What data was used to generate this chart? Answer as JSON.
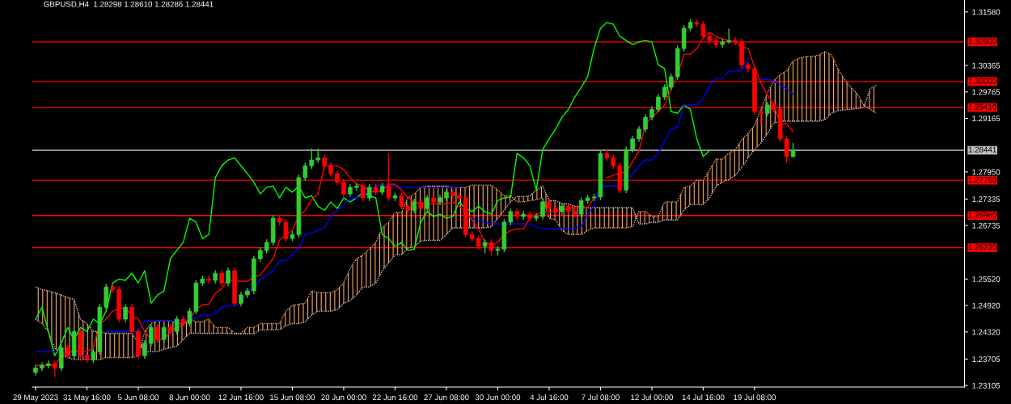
{
  "chart_data": {
    "type": "candlestick",
    "title": "GBPUSD,H4  1.28298 1.28610 1.28286 1.28441",
    "categories": [
      "29 May 2023",
      null,
      null,
      null,
      null,
      null,
      null,
      null,
      "31 May 16:00",
      null,
      null,
      null,
      null,
      null,
      null,
      null,
      "5 Jun 08:00",
      null,
      null,
      null,
      null,
      null,
      null,
      null,
      "8 Jun 00:00",
      null,
      null,
      null,
      null,
      null,
      null,
      null,
      "12 Jun 16:00",
      null,
      null,
      null,
      null,
      null,
      null,
      null,
      "15 Jun 08:00",
      null,
      null,
      null,
      null,
      null,
      null,
      null,
      "20 Jun 00:00",
      null,
      null,
      null,
      null,
      null,
      null,
      null,
      "22 Jun 16:00",
      null,
      null,
      null,
      null,
      null,
      null,
      null,
      "27 Jun 08:00",
      null,
      null,
      null,
      null,
      null,
      null,
      null,
      "30 Jun 00:00",
      null,
      null,
      null,
      null,
      null,
      null,
      null,
      "4 Jul 16:00",
      null,
      null,
      null,
      null,
      null,
      null,
      null,
      "7 Jul 08:00",
      null,
      null,
      null,
      null,
      null,
      null,
      null,
      "12 Jul 00:00",
      null,
      null,
      null,
      null,
      null,
      null,
      null,
      "14 Jul 16:00",
      null,
      null,
      null,
      null,
      null,
      null,
      null,
      "19 Jul 08:00",
      null,
      null,
      null,
      null,
      null,
      null,
      null,
      null,
      null,
      null,
      null,
      null,
      null,
      null,
      null,
      null,
      null,
      null,
      null
    ],
    "ohlc": [
      [
        1.234,
        1.2357,
        1.2333,
        1.235
      ],
      [
        1.235,
        1.2363,
        1.2343,
        1.2356
      ],
      [
        1.2356,
        1.2367,
        1.2349,
        1.236
      ],
      [
        1.236,
        1.2367,
        1.233,
        1.235
      ],
      [
        1.235,
        1.2403,
        1.2343,
        1.2396
      ],
      [
        1.2396,
        1.2403,
        1.2371,
        1.2378
      ],
      [
        1.2378,
        1.244,
        1.2371,
        1.2433
      ],
      [
        1.2433,
        1.244,
        1.2371,
        1.2378
      ],
      [
        1.2378,
        1.2385,
        1.2362,
        1.2369
      ],
      [
        1.2369,
        1.2394,
        1.2362,
        1.2387
      ],
      [
        1.2387,
        1.2495,
        1.238,
        1.2488
      ],
      [
        1.2488,
        1.2541,
        1.2481,
        1.2534
      ],
      [
        1.2534,
        1.2541,
        1.2521,
        1.2528
      ],
      [
        1.2528,
        1.2535,
        1.2454,
        1.2461
      ],
      [
        1.2461,
        1.2495,
        1.2454,
        1.2488
      ],
      [
        1.2488,
        1.2495,
        1.2426,
        1.2433
      ],
      [
        1.2433,
        1.244,
        1.2371,
        1.2378
      ],
      [
        1.2378,
        1.2413,
        1.2371,
        1.2406
      ],
      [
        1.2406,
        1.2449,
        1.2399,
        1.2442
      ],
      [
        1.2442,
        1.2449,
        1.2408,
        1.2415
      ],
      [
        1.2415,
        1.2449,
        1.2408,
        1.2442
      ],
      [
        1.2442,
        1.2449,
        1.2426,
        1.2433
      ],
      [
        1.2433,
        1.2468,
        1.2426,
        1.2461
      ],
      [
        1.2461,
        1.2468,
        1.2444,
        1.2451
      ],
      [
        1.2451,
        1.2486,
        1.2444,
        1.2479
      ],
      [
        1.2479,
        1.255,
        1.2472,
        1.2543
      ],
      [
        1.2543,
        1.2559,
        1.2536,
        1.2552
      ],
      [
        1.2552,
        1.2559,
        1.2542,
        1.2549
      ],
      [
        1.2549,
        1.2572,
        1.2542,
        1.2565
      ],
      [
        1.2565,
        1.2572,
        1.2536,
        1.2543
      ],
      [
        1.2543,
        1.2578,
        1.2536,
        1.2571
      ],
      [
        1.2571,
        1.2578,
        1.249,
        1.2497
      ],
      [
        1.2497,
        1.2523,
        1.249,
        1.2516
      ],
      [
        1.2516,
        1.2532,
        1.2509,
        1.2525
      ],
      [
        1.2525,
        1.2605,
        1.2518,
        1.2598
      ],
      [
        1.2598,
        1.2624,
        1.2591,
        1.2617
      ],
      [
        1.2617,
        1.2642,
        1.261,
        1.2635
      ],
      [
        1.2635,
        1.2697,
        1.2628,
        1.269
      ],
      [
        1.269,
        1.2697,
        1.2674,
        1.2681
      ],
      [
        1.2681,
        1.2688,
        1.2637,
        1.2644
      ],
      [
        1.2644,
        1.266,
        1.2637,
        1.2653
      ],
      [
        1.2653,
        1.2789,
        1.2646,
        1.2782
      ],
      [
        1.2782,
        1.2816,
        1.2775,
        1.2809
      ],
      [
        1.2809,
        1.2848,
        1.2802,
        1.2822
      ],
      [
        1.2822,
        1.2848,
        1.2815,
        1.2827
      ],
      [
        1.2827,
        1.2834,
        1.2802,
        1.2809
      ],
      [
        1.2809,
        1.2816,
        1.2784,
        1.2791
      ],
      [
        1.2791,
        1.2798,
        1.2765,
        1.2772
      ],
      [
        1.2772,
        1.2779,
        1.2738,
        1.2745
      ],
      [
        1.2745,
        1.2767,
        1.2738,
        1.276
      ],
      [
        1.276,
        1.277,
        1.2753,
        1.2763
      ],
      [
        1.2763,
        1.277,
        1.2729,
        1.2736
      ],
      [
        1.2736,
        1.2767,
        1.2729,
        1.276
      ],
      [
        1.276,
        1.2767,
        1.2742,
        1.2749
      ],
      [
        1.2749,
        1.277,
        1.2742,
        1.2763
      ],
      [
        1.2763,
        1.2837,
        1.2729,
        1.2736
      ],
      [
        1.2736,
        1.2748,
        1.2729,
        1.2741
      ],
      [
        1.2741,
        1.2748,
        1.271,
        1.2717
      ],
      [
        1.2717,
        1.2724,
        1.2701,
        1.2708
      ],
      [
        1.2708,
        1.2734,
        1.2701,
        1.2727
      ],
      [
        1.2727,
        1.2734,
        1.2705,
        1.2712
      ],
      [
        1.2712,
        1.2743,
        1.2705,
        1.2736
      ],
      [
        1.2736,
        1.2743,
        1.272,
        1.2727
      ],
      [
        1.2727,
        1.2743,
        1.272,
        1.2736
      ],
      [
        1.2736,
        1.2756,
        1.2729,
        1.2749
      ],
      [
        1.2749,
        1.2756,
        1.2734,
        1.2741
      ],
      [
        1.2741,
        1.2748,
        1.2729,
        1.2736
      ],
      [
        1.2736,
        1.2743,
        1.2646,
        1.2653
      ],
      [
        1.2653,
        1.266,
        1.2637,
        1.2644
      ],
      [
        1.2644,
        1.2651,
        1.2619,
        1.2626
      ],
      [
        1.2626,
        1.2642,
        1.261,
        1.2635
      ],
      [
        1.2635,
        1.2642,
        1.2605,
        1.2617
      ],
      [
        1.2617,
        1.2627,
        1.2605,
        1.262
      ],
      [
        1.262,
        1.2688,
        1.2613,
        1.2681
      ],
      [
        1.2681,
        1.2712,
        1.2674,
        1.2705
      ],
      [
        1.2705,
        1.2712,
        1.2687,
        1.2694
      ],
      [
        1.2694,
        1.2706,
        1.2687,
        1.2699
      ],
      [
        1.2699,
        1.2706,
        1.2683,
        1.269
      ],
      [
        1.269,
        1.2701,
        1.2683,
        1.2694
      ],
      [
        1.2694,
        1.2734,
        1.2687,
        1.2727
      ],
      [
        1.2727,
        1.2734,
        1.2705,
        1.2712
      ],
      [
        1.2712,
        1.2719,
        1.2698,
        1.2705
      ],
      [
        1.2705,
        1.2724,
        1.2698,
        1.2717
      ],
      [
        1.2717,
        1.2724,
        1.2698,
        1.2705
      ],
      [
        1.2705,
        1.2712,
        1.2692,
        1.2699
      ],
      [
        1.2699,
        1.2737,
        1.2692,
        1.273
      ],
      [
        1.273,
        1.2743,
        1.2723,
        1.2736
      ],
      [
        1.2736,
        1.2745,
        1.2729,
        1.2738
      ],
      [
        1.2738,
        1.2844,
        1.2731,
        1.2837
      ],
      [
        1.2837,
        1.2844,
        1.282,
        1.2827
      ],
      [
        1.2827,
        1.2834,
        1.2802,
        1.2809
      ],
      [
        1.2809,
        1.2816,
        1.2747,
        1.2754
      ],
      [
        1.2754,
        1.2853,
        1.2747,
        1.2846
      ],
      [
        1.2846,
        1.2877,
        1.2839,
        1.287
      ],
      [
        1.287,
        1.2899,
        1.2863,
        1.2892
      ],
      [
        1.2892,
        1.2926,
        1.2885,
        1.2919
      ],
      [
        1.2919,
        1.2944,
        1.2912,
        1.2937
      ],
      [
        1.2937,
        1.2972,
        1.293,
        1.2965
      ],
      [
        1.2965,
        1.2994,
        1.2958,
        1.2987
      ],
      [
        1.2987,
        1.3018,
        1.298,
        1.3011
      ],
      [
        1.3011,
        1.3082,
        1.3004,
        1.3075
      ],
      [
        1.3075,
        1.3128,
        1.3068,
        1.3121
      ],
      [
        1.3121,
        1.3141,
        1.3114,
        1.3134
      ],
      [
        1.3134,
        1.3141,
        1.3123,
        1.313
      ],
      [
        1.313,
        1.3137,
        1.3096,
        1.3103
      ],
      [
        1.3103,
        1.311,
        1.3086,
        1.3093
      ],
      [
        1.3093,
        1.31,
        1.3077,
        1.3084
      ],
      [
        1.3084,
        1.3097,
        1.3077,
        1.309
      ],
      [
        1.309,
        1.312,
        1.3086,
        1.3093
      ],
      [
        1.3093,
        1.31,
        1.3083,
        1.309
      ],
      [
        1.309,
        1.3097,
        1.3031,
        1.3038
      ],
      [
        1.3038,
        1.3045,
        1.3022,
        1.3029
      ],
      [
        1.3029,
        1.3036,
        1.2925,
        1.2932
      ],
      [
        1.2932,
        1.2939,
        1.29,
        1.2928
      ],
      [
        1.2928,
        1.2954,
        1.2921,
        1.2947
      ],
      [
        1.2947,
        1.2954,
        1.293,
        1.2937
      ],
      [
        1.2937,
        1.2944,
        1.2863,
        1.287
      ],
      [
        1.287,
        1.2877,
        1.2815,
        1.28298
      ],
      [
        1.28298,
        1.2861,
        1.28286,
        1.28441
      ],
      null,
      null,
      null,
      null,
      null,
      null,
      null,
      null,
      null,
      null,
      null,
      null,
      null
    ],
    "colors": [
      "#32cd32",
      "#32cd32",
      "#32cd32",
      "#ff0000",
      "#32cd32",
      "#ff0000",
      "#32cd32",
      "#ff0000",
      "#ff0000",
      "#32cd32",
      "#32cd32",
      "#32cd32",
      "#ff0000",
      "#ff0000",
      "#32cd32",
      "#ff0000",
      "#ff0000",
      "#32cd32",
      "#32cd32",
      "#ff0000",
      "#32cd32",
      "#ff0000",
      "#32cd32",
      "#ff0000",
      "#32cd32",
      "#32cd32",
      "#32cd32",
      "#ff0000",
      "#32cd32",
      "#ff0000",
      "#32cd32",
      "#ff0000",
      "#32cd32",
      "#32cd32",
      "#32cd32",
      "#32cd32",
      "#32cd32",
      "#32cd32",
      "#ff0000",
      "#ff0000",
      "#32cd32",
      "#32cd32",
      "#32cd32",
      "#32cd32",
      "#32cd32",
      "#ff0000",
      "#ff0000",
      "#ff0000",
      "#ff0000",
      "#32cd32",
      "#32cd32",
      "#ff0000",
      "#32cd32",
      "#ff0000",
      "#32cd32",
      "#ff0000",
      "#32cd32",
      "#ff0000",
      "#ff0000",
      "#32cd32",
      "#ff0000",
      "#32cd32",
      "#ff0000",
      "#32cd32",
      "#32cd32",
      "#ff0000",
      "#ff0000",
      "#ff0000",
      "#ff0000",
      "#ff0000",
      "#32cd32",
      "#ff0000",
      "#32cd32",
      "#32cd32",
      "#32cd32",
      "#ff0000",
      "#32cd32",
      "#ff0000",
      "#32cd32",
      "#32cd32",
      "#ff0000",
      "#ff0000",
      "#32cd32",
      "#ff0000",
      "#ff0000",
      "#32cd32",
      "#32cd32",
      "#32cd32",
      "#32cd32",
      "#ff0000",
      "#ff0000",
      "#ff0000",
      "#32cd32",
      "#32cd32",
      "#32cd32",
      "#32cd32",
      "#32cd32",
      "#32cd32",
      "#32cd32",
      "#32cd32",
      "#32cd32",
      "#32cd32",
      "#32cd32",
      "#ff0000",
      "#ff0000",
      "#ff0000",
      "#ff0000",
      "#32cd32",
      "#32cd32",
      "#ff0000",
      "#ff0000",
      "#ff0000",
      "#ff0000",
      "#ff0000",
      "#32cd32",
      "#ff0000",
      "#ff0000",
      "#ff0000",
      "#32cd32",
      null,
      null,
      null,
      null,
      null,
      null,
      null,
      null,
      null,
      null,
      null,
      null,
      null
    ],
    "series": [
      {
        "type": "line",
        "color": "#f4a460",
        "line_style": "dotted",
        "values": [
          1.2461,
          1.2451,
          1.2433,
          1.2396,
          1.2378,
          1.2374,
          1.2369,
          1.2369,
          1.2369,
          1.2369,
          1.2369,
          1.2374,
          1.2374,
          1.2374,
          1.2374,
          1.2374,
          1.2378,
          1.2433,
          1.2451,
          1.2457,
          1.2457,
          1.2457,
          1.2451,
          1.2451,
          1.2461,
          1.2455,
          1.2455,
          1.2461,
          1.2442,
          1.2442,
          1.2442,
          1.2429,
          1.2429,
          1.2442,
          1.2442,
          1.2451,
          1.2451,
          1.2451,
          1.2451,
          1.2479,
          1.2492,
          1.2495,
          1.2497,
          1.2525,
          1.2521,
          1.2521,
          1.2521,
          1.2528,
          1.2543,
          1.2576,
          1.2598,
          1.2607,
          1.262,
          1.2635,
          1.2668,
          1.2681,
          1.2703,
          1.2703,
          1.2736,
          1.2745,
          1.276,
          1.2763,
          1.2763,
          1.2763,
          1.2763,
          1.276,
          1.276,
          1.276,
          1.2765,
          1.2765,
          1.2765,
          1.2765,
          1.2754,
          1.2741,
          1.2741,
          1.2727,
          1.2727,
          1.273,
          1.2732,
          1.2736,
          1.269,
          1.2686,
          1.2662,
          1.2653,
          1.2653,
          1.2653,
          1.2662,
          1.2668,
          1.2668,
          1.2668,
          1.2668,
          1.2668,
          1.2668,
          1.2671,
          1.2705,
          1.2705,
          1.2694,
          1.2694,
          1.2727,
          1.2727,
          1.2727,
          1.276,
          1.2763,
          1.2776,
          1.2776,
          1.28,
          1.2824,
          1.2824,
          1.2837,
          1.2846,
          1.2868,
          1.2882,
          1.2901,
          1.2937,
          1.2974,
          1.3002,
          1.3016,
          1.3024,
          1.3047,
          1.3053,
          1.3057,
          1.3057,
          1.306,
          1.3068,
          1.306,
          1.3029,
          1.3005,
          1.2987,
          1.2972,
          1.2947,
          1.2937,
          1.2928
        ],
        "lower": [
          1.2534,
          1.2528,
          1.2525,
          1.2521,
          1.2516,
          1.251,
          1.2506,
          1.2461,
          1.2451,
          1.2433,
          1.2433,
          1.2429,
          1.2429,
          1.2429,
          1.2429,
          1.2429,
          1.2406,
          1.2387,
          1.2387,
          1.2387,
          1.2393,
          1.2396,
          1.24,
          1.2415,
          1.2429,
          1.2429,
          1.2429,
          1.2429,
          1.2429,
          1.2429,
          1.2429,
          1.2428,
          1.2428,
          1.2428,
          1.2428,
          1.2437,
          1.2437,
          1.2437,
          1.2437,
          1.2446,
          1.2451,
          1.2451,
          1.2455,
          1.247,
          1.2479,
          1.2479,
          1.2479,
          1.2483,
          1.2497,
          1.2503,
          1.2516,
          1.2534,
          1.2534,
          1.2543,
          1.2571,
          1.2589,
          1.2607,
          1.2607,
          1.2622,
          1.2626,
          1.2638,
          1.264,
          1.264,
          1.264,
          1.2653,
          1.2668,
          1.2668,
          1.2668,
          1.2668,
          1.2668,
          1.2668,
          1.2671,
          1.269,
          1.2708,
          1.2727,
          1.2739,
          1.2739,
          1.2741,
          1.2754,
          1.2763,
          1.273,
          1.273,
          1.2723,
          1.2723,
          1.2717,
          1.2717,
          1.2714,
          1.2714,
          1.2714,
          1.2714,
          1.2714,
          1.2714,
          1.2714,
          1.2714,
          1.2677,
          1.2677,
          1.2681,
          1.2681,
          1.2686,
          1.2686,
          1.2686,
          1.2708,
          1.2721,
          1.2721,
          1.2721,
          1.2736,
          1.2763,
          1.2772,
          1.2778,
          1.2787,
          1.2805,
          1.2827,
          1.2846,
          1.2861,
          1.2882,
          1.2906,
          1.291,
          1.291,
          1.291,
          1.291,
          1.291,
          1.291,
          1.291,
          1.2914,
          1.2928,
          1.2934,
          1.2936,
          1.2937,
          1.2939,
          1.2941,
          1.2983,
          1.2992
        ],
        "upper": [
          1.2461,
          1.2451,
          1.2433,
          1.2396,
          1.2378,
          1.2374,
          1.2369,
          1.2369,
          1.2369,
          1.2369,
          1.2369,
          1.2374,
          1.2374,
          1.2374,
          1.2374,
          1.2374,
          1.2378,
          1.2433,
          1.2451,
          1.2457,
          1.2457,
          1.2457,
          1.2451,
          1.2451,
          1.2461,
          1.2455,
          1.2455,
          1.2461,
          1.2442,
          1.2442,
          1.2442,
          1.2429,
          1.2429,
          1.2442,
          1.2442,
          1.2451,
          1.2451,
          1.2451,
          1.2451,
          1.2479,
          1.2492,
          1.2495,
          1.2497,
          1.2525,
          1.2521,
          1.2521,
          1.2521,
          1.2528,
          1.2543,
          1.2576,
          1.2598,
          1.2607,
          1.262,
          1.2635,
          1.2668,
          1.2681,
          1.2703,
          1.2703,
          1.2736,
          1.2745,
          1.276,
          1.2763,
          1.2763,
          1.2763,
          1.2763,
          1.276,
          1.276,
          1.276,
          1.2765,
          1.2765,
          1.2765,
          1.2765,
          1.2754,
          1.2741,
          1.2741,
          1.2727,
          1.2727,
          1.273,
          1.2732,
          1.2736,
          1.269,
          1.2686,
          1.2662,
          1.2653,
          1.2653,
          1.2653,
          1.2662,
          1.2668,
          1.2668,
          1.2668,
          1.2668,
          1.2668,
          1.2668,
          1.2671,
          1.2705,
          1.2705,
          1.2694,
          1.2694,
          1.2727,
          1.2727,
          1.2727,
          1.276,
          1.2763,
          1.2776,
          1.2776,
          1.28,
          1.2824,
          1.2824,
          1.2837,
          1.2846,
          1.2868,
          1.2882,
          1.2901,
          1.2937,
          1.2974,
          1.3002,
          1.3016,
          1.3024,
          1.3047,
          1.3053,
          1.3057,
          1.3057,
          1.306,
          1.3068,
          1.306,
          1.3029,
          1.3005,
          1.2987,
          1.2972,
          1.2947,
          1.2937,
          1.2928
        ]
      },
      {
        "type": "line",
        "color": "#d8bfd8",
        "line_style": "dotted",
        "values": [
          1.2534,
          1.2528,
          1.2525,
          1.2521,
          1.2516,
          1.251,
          1.2506,
          1.2461,
          1.2451,
          1.2433,
          1.2433,
          1.2429,
          1.2429,
          1.2429,
          1.2429,
          1.2429,
          1.2406,
          1.2387,
          1.2387,
          1.2387,
          1.2393,
          1.2396,
          1.24,
          1.2415,
          1.2429,
          1.2429,
          1.2429,
          1.2429,
          1.2429,
          1.2429,
          1.2429,
          1.2428,
          1.2428,
          1.2428,
          1.2428,
          1.2437,
          1.2437,
          1.2437,
          1.2437,
          1.2446,
          1.2451,
          1.2451,
          1.2455,
          1.247,
          1.2479,
          1.2479,
          1.2479,
          1.2483,
          1.2497,
          1.2503,
          1.2516,
          1.2534,
          1.2534,
          1.2543,
          1.2571,
          1.2589,
          1.2607,
          1.2607,
          1.2622,
          1.2626,
          1.2638,
          1.264,
          1.264,
          1.264,
          1.2653,
          1.2668,
          1.2668,
          1.2668,
          1.2668,
          1.2668,
          1.2668,
          1.2671,
          1.269,
          1.2708,
          1.2727,
          1.2739,
          1.2739,
          1.2741,
          1.2754,
          1.2763,
          1.273,
          1.273,
          1.2723,
          1.2723,
          1.2717,
          1.2717,
          1.2714,
          1.2714,
          1.2714,
          1.2714,
          1.2714,
          1.2714,
          1.2714,
          1.2714,
          1.2677,
          1.2677,
          1.2681,
          1.2681,
          1.2686,
          1.2686,
          1.2686,
          1.2708,
          1.2721,
          1.2721,
          1.2721,
          1.2736,
          1.2763,
          1.2772,
          1.2778,
          1.2787,
          1.2805,
          1.2827,
          1.2846,
          1.2861,
          1.2882,
          1.2906,
          1.291,
          1.291,
          1.291,
          1.291,
          1.291,
          1.291,
          1.291,
          1.2914,
          1.2928,
          1.2934,
          1.2936,
          1.2937,
          1.2939,
          1.2941,
          1.2983,
          1.2992
        ]
      },
      {
        "type": "line",
        "color": "#00ff00",
        "line_style": "solid",
        "values": [
          1.2461,
          1.2488,
          1.2433,
          1.2378,
          1.2406,
          1.2442,
          1.2415,
          1.2442,
          1.2433,
          1.2461,
          1.2451,
          1.2479,
          1.2543,
          1.2552,
          1.2549,
          1.2565,
          1.2543,
          1.2571,
          1.2497,
          1.2516,
          1.2525,
          1.2598,
          1.2617,
          1.2635,
          1.269,
          1.2681,
          1.2644,
          1.2653,
          1.2782,
          1.2809,
          1.2822,
          1.2827,
          1.2809,
          1.2791,
          1.2772,
          1.2745,
          1.276,
          1.2763,
          1.2736,
          1.276,
          1.2749,
          1.2763,
          1.2736,
          1.2741,
          1.2717,
          1.2708,
          1.2727,
          1.2712,
          1.2736,
          1.2727,
          1.2736,
          1.2749,
          1.2741,
          1.2736,
          1.2653,
          1.2644,
          1.2626,
          1.2635,
          1.2617,
          1.262,
          1.2681,
          1.2705,
          1.2694,
          1.2699,
          1.269,
          1.2694,
          1.2727,
          1.2712,
          1.2705,
          1.2717,
          1.2705,
          1.2699,
          1.273,
          1.2736,
          1.2738,
          1.2837,
          1.2827,
          1.2809,
          1.2754,
          1.2846,
          1.287,
          1.2892,
          1.2919,
          1.2937,
          1.2965,
          1.2987,
          1.3011,
          1.3075,
          1.3121,
          1.3134,
          1.313,
          1.3103,
          1.3093,
          1.3084,
          1.309,
          1.3093,
          1.309,
          1.3038,
          1.3029,
          1.2932,
          1.2928,
          1.2947,
          1.2937,
          1.287,
          1.283,
          1.2844,
          null,
          null,
          null,
          null,
          null,
          null,
          null,
          null,
          null,
          null,
          null,
          null,
          null,
          null,
          null,
          null,
          null,
          null,
          null,
          null,
          null,
          null,
          null,
          null,
          null,
          null
        ]
      },
      {
        "type": "line",
        "color": "#0000ff",
        "line_style": "solid",
        "values": [
          1.2387,
          1.2387,
          1.2387,
          1.2387,
          1.2387,
          1.2378,
          1.2378,
          1.2378,
          1.2378,
          1.2378,
          null,
          1.2433,
          1.2433,
          1.2433,
          1.2433,
          1.2433,
          1.2433,
          1.2457,
          1.2457,
          1.2457,
          1.2457,
          1.2457,
          1.2457,
          1.2457,
          1.2461,
          1.2464,
          1.247,
          1.247,
          1.2473,
          1.2488,
          1.2492,
          1.2492,
          1.2497,
          1.2528,
          1.2528,
          1.2552,
          1.2561,
          1.2571,
          1.2594,
          1.2594,
          1.2607,
          1.2622,
          1.2653,
          1.2657,
          1.2662,
          1.2668,
          1.2694,
          1.2708,
          1.2721,
          1.2736,
          1.2736,
          1.2741,
          1.2754,
          1.2763,
          1.2767,
          1.2767,
          1.2763,
          1.276,
          1.276,
          1.276,
          1.276,
          1.276,
          1.276,
          1.276,
          1.276,
          1.276,
          1.276,
          null,
          1.269,
          1.2684,
          1.2681,
          1.2677,
          1.2677,
          1.2677,
          1.2677,
          1.2677,
          1.2677,
          1.2677,
          1.2671,
          1.2666,
          1.2666,
          1.2666,
          1.2666,
          1.2666,
          1.2668,
          1.267,
          1.2699,
          1.2717,
          1.2763,
          1.2763,
          1.2763,
          1.2763,
          1.2767,
          1.2791,
          1.2809,
          1.2822,
          1.2822,
          1.2838,
          1.2864,
          1.2892,
          1.2897,
          1.2947,
          1.2947,
          1.2947,
          1.2961,
          1.2992,
          1.3007,
          1.3007,
          1.3024,
          1.3024,
          1.3024,
          1.3053,
          null,
          1.3005,
          1.3005,
          1.3002,
          1.2992,
          1.2983,
          1.2972,
          null,
          null,
          null,
          null,
          null,
          null,
          null,
          null,
          null,
          null,
          null,
          null,
          null
        ]
      },
      {
        "type": "line",
        "color": "#ff0000",
        "line_style": "solid",
        "values": [
          1.2356,
          1.2356,
          1.2356,
          1.2356,
          1.2378,
          1.2387,
          1.2387,
          1.2387,
          1.2387,
          1.2396,
          1.2451,
          1.2461,
          1.2479,
          1.2485,
          1.2485,
          1.247,
          1.2461,
          1.2433,
          1.2415,
          1.2415,
          1.2415,
          1.2433,
          1.2442,
          1.2448,
          1.2461,
          1.2483,
          1.2494,
          1.2495,
          1.2519,
          1.253,
          1.2552,
          1.2547,
          1.2547,
          1.2547,
          1.2556,
          1.2561,
          1.258,
          1.2598,
          1.264,
          1.2653,
          1.2662,
          1.2695,
          1.2708,
          1.2732,
          1.2745,
          1.2809,
          1.2809,
          1.2809,
          1.28,
          1.2782,
          1.2767,
          1.2763,
          1.2752,
          1.2749,
          1.2754,
          1.2767,
          1.2767,
          1.2754,
          1.2736,
          1.2727,
          1.2723,
          1.2723,
          1.2723,
          1.2723,
          1.2723,
          1.2727,
          1.2717,
          1.2705,
          1.2686,
          1.2666,
          1.2635,
          1.2629,
          1.2635,
          1.2653,
          1.2662,
          1.2666,
          1.2666,
          1.269,
          1.2699,
          1.2703,
          1.2705,
          1.2705,
          1.2708,
          1.2712,
          1.2714,
          1.2714,
          1.2714,
          1.2736,
          null,
          1.2782,
          1.2787,
          1.2793,
          1.2794,
          1.2818,
          1.2842,
          1.2904,
          1.2919,
          1.2932,
          1.2947,
          1.2983,
          1.3014,
          1.3062,
          1.3062,
          1.3075,
          1.3099,
          1.3112,
          1.3102,
          1.3097,
          1.3093,
          1.309,
          1.3079,
          1.3075,
          1.3033,
          1.2996,
          1.297,
          1.2947,
          1.2904,
          1.2904,
          1.2886,
          null,
          null,
          null,
          null,
          null,
          null,
          null,
          null,
          null,
          null,
          null,
          null,
          null
        ]
      }
    ],
    "ref_lines": [
      {
        "axis": "y",
        "value": 1.309,
        "label": "1.30900",
        "color": "#ff0000"
      },
      {
        "axis": "y",
        "value": 1.3,
        "label": "1.30000",
        "color": "#ff0000"
      },
      {
        "axis": "y",
        "value": 1.2941,
        "label": "1.29410",
        "color": "#ff0000"
      },
      {
        "axis": "y",
        "value": 1.28441,
        "label": "1.28441",
        "color": "#c0c0c0"
      },
      {
        "axis": "y",
        "value": 1.2776,
        "label": "1.27760",
        "color": "#ff0000"
      },
      {
        "axis": "y",
        "value": 1.2696,
        "label": "1.26960",
        "color": "#ff0000"
      },
      {
        "axis": "y",
        "value": 1.2623,
        "label": "1.26230",
        "color": "#ff0000"
      }
    ],
    "ylim": [
      1.2307,
      1.3185
    ],
    "yticks": [
      {
        "value": 1.3158,
        "label": "1.31580"
      },
      {
        "value": 1.30365,
        "label": "1.30365"
      },
      {
        "value": 1.29765,
        "label": "1.29765"
      },
      {
        "value": 1.29165,
        "label": "1.29165"
      },
      {
        "value": 1.2795,
        "label": "1.27950"
      },
      {
        "value": 1.27335,
        "label": "1.27335"
      },
      {
        "value": 1.26735,
        "label": "1.26735"
      },
      {
        "value": 1.2552,
        "label": "1.25520"
      },
      {
        "value": 1.2492,
        "label": "1.24920"
      },
      {
        "value": 1.2432,
        "label": "1.24320"
      },
      {
        "value": 1.23705,
        "label": "1.23705"
      },
      {
        "value": 1.23105,
        "label": "1.23105"
      }
    ],
    "grid": false,
    "marker": "none"
  }
}
